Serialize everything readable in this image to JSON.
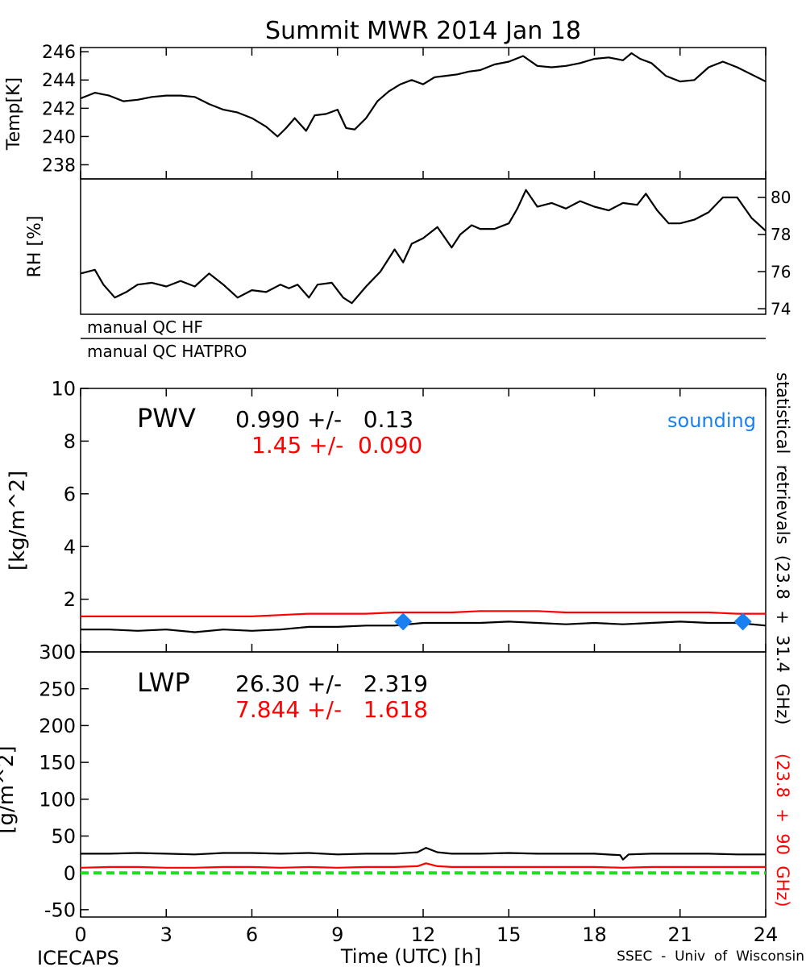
{
  "chart_data": [
    {
      "type": "line",
      "title": "Summit MWR 2014 Jan 18",
      "ylabel": "Temp[K]",
      "xlim": [
        0,
        24
      ],
      "ylim": [
        237,
        246.3
      ],
      "yticks": [
        238,
        240,
        242,
        244,
        246
      ],
      "series": [
        {
          "color": "#000000",
          "x": [
            0,
            0.5,
            1,
            1.5,
            2,
            2.5,
            3,
            3.5,
            4,
            4.5,
            5,
            5.5,
            6,
            6.5,
            6.9,
            7.2,
            7.5,
            7.9,
            8.2,
            8.6,
            9,
            9.3,
            9.6,
            10,
            10.4,
            10.8,
            11.2,
            11.6,
            12,
            12.4,
            12.8,
            13.2,
            13.6,
            14,
            14.5,
            15,
            15.5,
            16,
            16.5,
            17,
            17.5,
            18,
            18.5,
            19,
            19.3,
            19.6,
            20,
            20.5,
            21,
            21.5,
            22,
            22.5,
            23,
            23.5,
            24
          ],
          "values": [
            242.7,
            243.1,
            242.9,
            242.5,
            242.6,
            242.8,
            242.9,
            242.9,
            242.8,
            242.3,
            241.9,
            241.7,
            241.3,
            240.7,
            240.0,
            240.6,
            241.3,
            240.4,
            241.5,
            241.6,
            241.9,
            240.6,
            240.5,
            241.3,
            242.5,
            243.2,
            243.7,
            244.0,
            243.7,
            244.2,
            244.3,
            244.4,
            244.6,
            244.7,
            245.1,
            245.3,
            245.7,
            245.0,
            244.9,
            245.0,
            245.2,
            245.5,
            245.6,
            245.4,
            245.9,
            245.5,
            245.2,
            244.3,
            243.9,
            244.0,
            244.9,
            245.3,
            244.9,
            244.4,
            243.9
          ]
        }
      ]
    },
    {
      "type": "line",
      "ylabel": "RH [%]",
      "xlim": [
        0,
        24
      ],
      "ylim": [
        73.7,
        81
      ],
      "yticks": [
        74,
        76,
        78,
        80
      ],
      "series": [
        {
          "color": "#000000",
          "x": [
            0,
            0.5,
            0.8,
            1.2,
            1.6,
            2,
            2.5,
            3,
            3.5,
            4,
            4.5,
            5,
            5.5,
            6,
            6.5,
            7,
            7.3,
            7.6,
            8,
            8.3,
            8.8,
            9.2,
            9.5,
            10,
            10.5,
            11,
            11.3,
            11.6,
            12,
            12.5,
            13,
            13.3,
            13.7,
            14,
            14.5,
            15,
            15.3,
            15.6,
            16,
            16.5,
            17,
            17.5,
            18,
            18.5,
            19,
            19.5,
            19.8,
            20.2,
            20.6,
            21,
            21.5,
            22,
            22.5,
            23,
            23.5,
            24
          ],
          "values": [
            75.9,
            76.1,
            75.3,
            74.6,
            74.9,
            75.3,
            75.4,
            75.2,
            75.5,
            75.2,
            75.9,
            75.3,
            74.6,
            75.0,
            74.9,
            75.3,
            75.1,
            75.3,
            74.6,
            75.3,
            75.4,
            74.6,
            74.3,
            75.2,
            76.0,
            77.2,
            76.5,
            77.5,
            77.8,
            78.4,
            77.3,
            78.0,
            78.5,
            78.3,
            78.3,
            78.6,
            79.4,
            80.4,
            79.5,
            79.7,
            79.4,
            79.8,
            79.5,
            79.3,
            79.7,
            79.6,
            80.2,
            79.3,
            78.6,
            78.6,
            78.8,
            79.2,
            80.0,
            80.0,
            78.9,
            78.2
          ]
        }
      ]
    },
    {
      "type": "line",
      "ylabel": "[kg/m^2]",
      "annotation": "PWV",
      "xlim": [
        0,
        24
      ],
      "ylim": [
        0,
        10
      ],
      "yticks": [
        0,
        2,
        4,
        6,
        8,
        10
      ],
      "series": [
        {
          "color": "#000000",
          "label": "0.990 +/-   0.13",
          "x": [
            0,
            1,
            2,
            3,
            4,
            5,
            6,
            7,
            8,
            9,
            10,
            11,
            12,
            13,
            14,
            15,
            16,
            17,
            18,
            19,
            20,
            21,
            22,
            23,
            24
          ],
          "values": [
            0.85,
            0.85,
            0.8,
            0.85,
            0.75,
            0.85,
            0.8,
            0.85,
            0.95,
            0.95,
            1.0,
            1.0,
            1.1,
            1.1,
            1.1,
            1.15,
            1.1,
            1.05,
            1.1,
            1.05,
            1.1,
            1.15,
            1.1,
            1.1,
            1.0
          ]
        },
        {
          "color": "#ff0000",
          "label": "1.45 +/-  0.090",
          "x": [
            0,
            1,
            2,
            3,
            4,
            5,
            6,
            7,
            8,
            9,
            10,
            11,
            12,
            13,
            14,
            15,
            16,
            17,
            18,
            19,
            20,
            21,
            22,
            23,
            24
          ],
          "values": [
            1.35,
            1.35,
            1.35,
            1.35,
            1.35,
            1.35,
            1.35,
            1.4,
            1.45,
            1.45,
            1.45,
            1.5,
            1.5,
            1.5,
            1.55,
            1.55,
            1.55,
            1.5,
            1.5,
            1.5,
            1.5,
            1.5,
            1.5,
            1.45,
            1.45
          ]
        },
        {
          "color": "#1a7ff0",
          "label": "sounding",
          "style": "diamond",
          "x": [
            11.3,
            23.2
          ],
          "values": [
            1.15,
            1.15
          ]
        }
      ]
    },
    {
      "type": "line",
      "ylabel": "[g/m^2]",
      "annotation": "LWP",
      "xlabel": "Time (UTC) [h]",
      "xlim": [
        0,
        24
      ],
      "ylim": [
        -60,
        300
      ],
      "xticks": [
        0,
        3,
        6,
        9,
        12,
        15,
        18,
        21,
        24
      ],
      "yticks": [
        -50,
        0,
        50,
        100,
        150,
        200,
        250,
        300
      ],
      "series": [
        {
          "color": "#000000",
          "label": "26.30 +/-   2.319",
          "x": [
            0,
            1,
            2,
            3,
            4,
            5,
            6,
            7,
            8,
            9,
            10,
            11,
            11.8,
            12.1,
            12.5,
            13,
            14,
            15,
            16,
            17,
            18,
            18.9,
            19,
            19.2,
            20,
            21,
            22,
            23,
            24
          ],
          "values": [
            26,
            26,
            27,
            26,
            25,
            27,
            27,
            26,
            27,
            25,
            26,
            26,
            28,
            34,
            28,
            26,
            26,
            27,
            26,
            26,
            26,
            24,
            18,
            25,
            26,
            26,
            26,
            25,
            25
          ]
        },
        {
          "color": "#ff0000",
          "label": "7.844 +/-   1.618",
          "x": [
            0,
            1,
            2,
            3,
            4,
            5,
            6,
            7,
            8,
            9,
            10,
            11,
            11.8,
            12.1,
            12.5,
            13,
            14,
            15,
            16,
            17,
            18,
            19,
            20,
            21,
            22,
            23,
            24
          ],
          "values": [
            7,
            8,
            8,
            7,
            7,
            8,
            8,
            7,
            8,
            7,
            8,
            8,
            9,
            13,
            9,
            8,
            8,
            8,
            8,
            8,
            8,
            7,
            8,
            8,
            8,
            8,
            8
          ]
        },
        {
          "color": "#22dd22",
          "style": "dashed",
          "x": [
            0,
            24
          ],
          "values": [
            0,
            0
          ]
        }
      ]
    }
  ],
  "qc": {
    "row1": "manual  QC  HF",
    "row2": "manual  QC  HATPRO"
  },
  "side": {
    "black_label": "statistical  retrievals  (23.8  +  31.4  GHz)",
    "red_label": "(23.8  +  90  GHz)"
  },
  "footer": {
    "left": "ICECAPS",
    "right": "SSEC  -  Univ  of  Wisconsin"
  }
}
